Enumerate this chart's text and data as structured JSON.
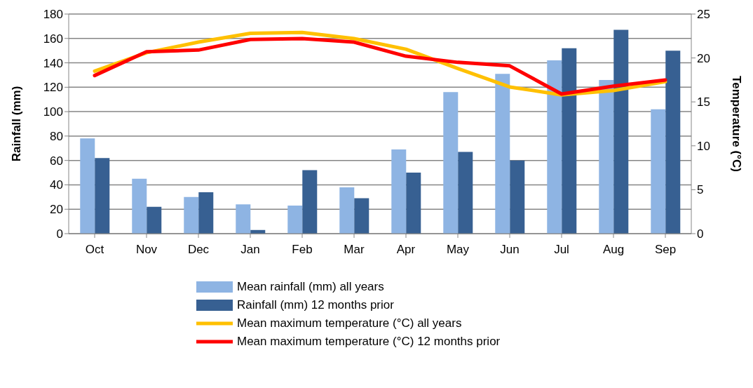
{
  "chart_data": {
    "type": "bar",
    "ylabel": "Rainfall (mm)",
    "y2label": "Temperature (°C)",
    "categories": [
      "Oct",
      "Nov",
      "Dec",
      "Jan",
      "Feb",
      "Mar",
      "Apr",
      "May",
      "Jun",
      "Jul",
      "Aug",
      "Sep"
    ],
    "series": [
      {
        "name": "Mean rainfall (mm) all years",
        "color": "#8eb4e3",
        "values": [
          78,
          45,
          30,
          24,
          23,
          38,
          69,
          116,
          131,
          142,
          126,
          102
        ]
      },
      {
        "name": "Rainfall (mm) 12 months prior",
        "color": "#376092",
        "values": [
          62,
          22,
          34,
          3,
          52,
          29,
          50,
          67,
          60,
          152,
          167,
          150
        ]
      },
      {
        "name": "Mean maximum temperature (°C) all years",
        "type": "line",
        "axis": "y2",
        "color": "#ffc000",
        "values": [
          18.5,
          20.6,
          21.8,
          22.8,
          22.9,
          22.2,
          21.0,
          18.8,
          16.7,
          15.8,
          16.3,
          17.3
        ]
      },
      {
        "name": "Mean maximum temperature (°C) 12 months prior",
        "type": "line",
        "axis": "y2",
        "color": "#ff0000",
        "values": [
          18.0,
          20.7,
          20.9,
          22.1,
          22.2,
          21.8,
          20.2,
          19.5,
          19.1,
          15.9,
          16.8,
          17.5
        ]
      }
    ],
    "ylim": [
      0,
      180
    ],
    "yticks": [
      0,
      20,
      40,
      60,
      80,
      100,
      120,
      140,
      160,
      180
    ],
    "y2lim": [
      0,
      25
    ],
    "y2ticks": [
      0,
      5,
      10,
      15,
      20,
      25
    ],
    "grid": "y",
    "legend": "bottom",
    "marker": "none",
    "line_style": "solid"
  }
}
